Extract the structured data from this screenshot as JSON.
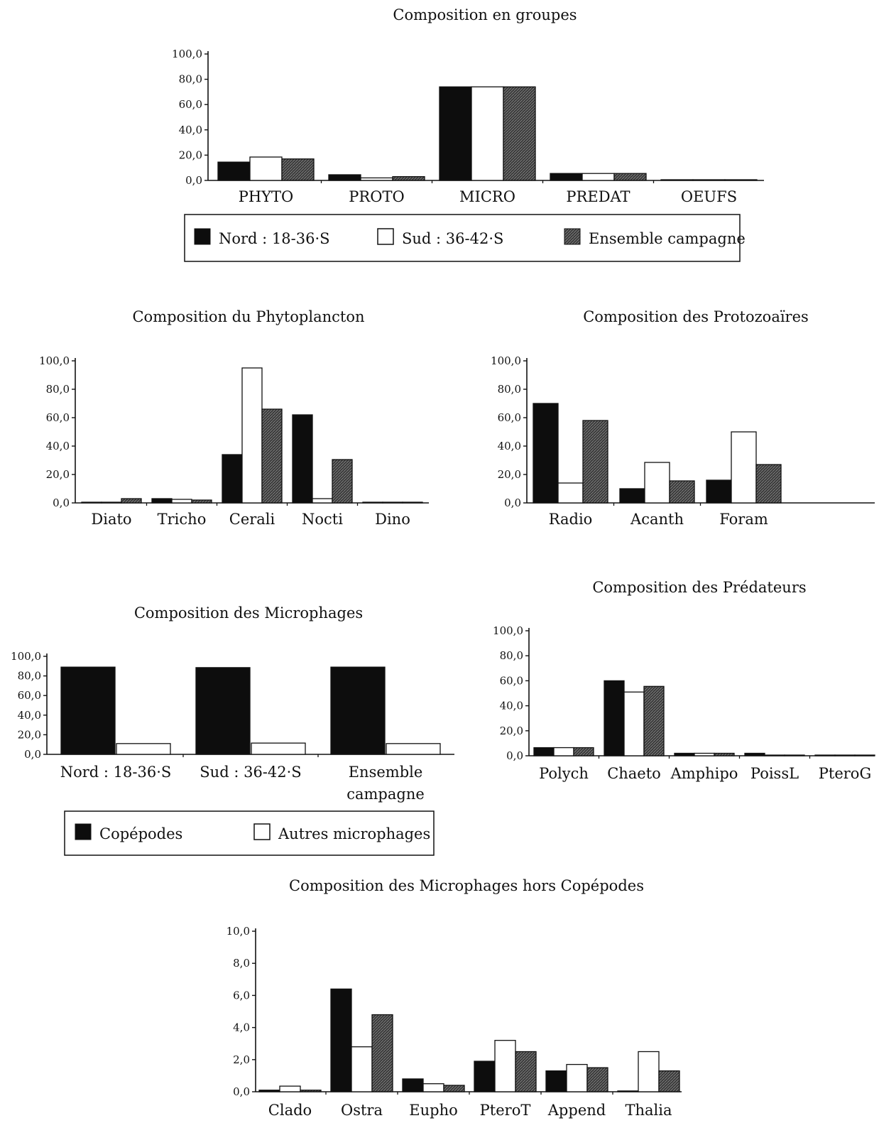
{
  "colors": {
    "series_nord": "#0d0d0d",
    "series_sud": "#ffffff",
    "series_ensemble": "#3a3a3a",
    "axis": "#111111"
  },
  "legends": {
    "main": [
      "Nord : 18-36·S",
      "Sud : 36-42·S",
      "Ensemble campagne"
    ],
    "microphages": [
      "Copépodes",
      "Autres microphages"
    ]
  },
  "chart_data": [
    {
      "id": "groupes",
      "type": "bar",
      "title": "Composition en groupes",
      "categories": [
        "PHYTO",
        "PROTO",
        "MICRO",
        "PREDAT",
        "OEUFS"
      ],
      "yticks": [
        "0,0",
        "20,0",
        "40,0",
        "60,0",
        "80,0",
        "100,0"
      ],
      "ylim": [
        0,
        100
      ],
      "grid": false,
      "legend": "bottom",
      "series": [
        {
          "name": "Nord : 18-36·S",
          "fill": "solid",
          "values": [
            14.5,
            4.5,
            74.0,
            5.5,
            0.3
          ]
        },
        {
          "name": "Sud : 36-42·S",
          "fill": "white",
          "values": [
            18.5,
            2.0,
            74.0,
            5.5,
            0.2
          ]
        },
        {
          "name": "Ensemble campagne",
          "fill": "hatched",
          "values": [
            17.0,
            3.0,
            74.0,
            5.5,
            0.2
          ]
        }
      ]
    },
    {
      "id": "phyto",
      "type": "bar",
      "title": "Composition du Phytoplancton",
      "categories": [
        "Diato",
        "Tricho",
        "Cerali",
        "Nocti",
        "Dino"
      ],
      "yticks": [
        "0,0",
        "20,0",
        "40,0",
        "60,0",
        "80,0",
        "100,0"
      ],
      "ylim": [
        0,
        100
      ],
      "grid": false,
      "legend": "none",
      "series": [
        {
          "name": "Nord : 18-36·S",
          "fill": "solid",
          "values": [
            0.3,
            3.0,
            34.0,
            62.0,
            0.3
          ]
        },
        {
          "name": "Sud : 36-42·S",
          "fill": "white",
          "values": [
            0.2,
            2.5,
            95.0,
            3.0,
            0.2
          ]
        },
        {
          "name": "Ensemble campagne",
          "fill": "hatched",
          "values": [
            3.0,
            2.0,
            66.0,
            30.5,
            0.5
          ]
        }
      ]
    },
    {
      "id": "proto",
      "type": "bar",
      "title": "Composition des Protozoaïres",
      "categories": [
        "Radio",
        "Acanth",
        "Foram"
      ],
      "yticks": [
        "0,0",
        "20,0",
        "40,0",
        "60,0",
        "80,0",
        "100,0"
      ],
      "ylim": [
        0,
        100
      ],
      "grid": false,
      "legend": "none",
      "series": [
        {
          "name": "Nord : 18-36·S",
          "fill": "solid",
          "values": [
            70.0,
            10.0,
            16.0
          ]
        },
        {
          "name": "Sud : 36-42·S",
          "fill": "white",
          "values": [
            14.0,
            28.5,
            50.0
          ]
        },
        {
          "name": "Ensemble campagne",
          "fill": "hatched",
          "values": [
            58.0,
            15.5,
            27.0
          ]
        }
      ]
    },
    {
      "id": "microphages",
      "type": "bar",
      "title": "Composition des Microphages",
      "categories": [
        "Nord : 18-36·S",
        "Sud : 36-42·S",
        "Ensemble|campagne"
      ],
      "yticks": [
        "0,0",
        "20,0",
        "40,0",
        "60,0",
        "80,0",
        "100,0"
      ],
      "ylim": [
        0,
        100
      ],
      "grid": false,
      "legend": "bottom",
      "series": [
        {
          "name": "Copépodes",
          "fill": "solid",
          "values": [
            89.0,
            88.5,
            89.0
          ]
        },
        {
          "name": "Autres microphages",
          "fill": "white",
          "values": [
            11.0,
            11.5,
            11.0
          ]
        }
      ]
    },
    {
      "id": "predateurs",
      "type": "bar",
      "title": "Composition des Prédateurs",
      "categories": [
        "Polych",
        "Chaeto",
        "Amphipo",
        "PoissL",
        "PteroG"
      ],
      "yticks": [
        "0,0",
        "20,0",
        "40,0",
        "60,0",
        "80,0",
        "100,0"
      ],
      "ylim": [
        0,
        100
      ],
      "grid": false,
      "legend": "none",
      "series": [
        {
          "name": "Nord : 18-36·S",
          "fill": "solid",
          "values": [
            6.5,
            60.0,
            2.0,
            2.0,
            0.2
          ]
        },
        {
          "name": "Sud : 36-42·S",
          "fill": "white",
          "values": [
            6.5,
            51.0,
            2.0,
            0.2,
            0.1
          ]
        },
        {
          "name": "Ensemble campagne",
          "fill": "hatched",
          "values": [
            6.5,
            55.5,
            2.0,
            0.5,
            0.1
          ]
        }
      ]
    },
    {
      "id": "hors",
      "type": "bar",
      "title": "Composition des Microphages hors Copépodes",
      "categories": [
        "Clado",
        "Ostra",
        "Eupho",
        "PteroT",
        "Append",
        "Thalia"
      ],
      "yticks": [
        "0,0",
        "2,0",
        "4,0",
        "6,0",
        "8,0",
        "10,0"
      ],
      "ylim": [
        0,
        10
      ],
      "grid": false,
      "legend": "none",
      "series": [
        {
          "name": "Nord : 18-36·S",
          "fill": "solid",
          "values": [
            0.1,
            6.4,
            0.8,
            1.9,
            1.3,
            0.05
          ]
        },
        {
          "name": "Sud : 36-42·S",
          "fill": "white",
          "values": [
            0.35,
            2.8,
            0.5,
            3.2,
            1.7,
            2.5
          ]
        },
        {
          "name": "Ensemble campagne",
          "fill": "hatched",
          "values": [
            0.1,
            4.8,
            0.4,
            2.5,
            1.5,
            1.3
          ]
        }
      ]
    }
  ]
}
